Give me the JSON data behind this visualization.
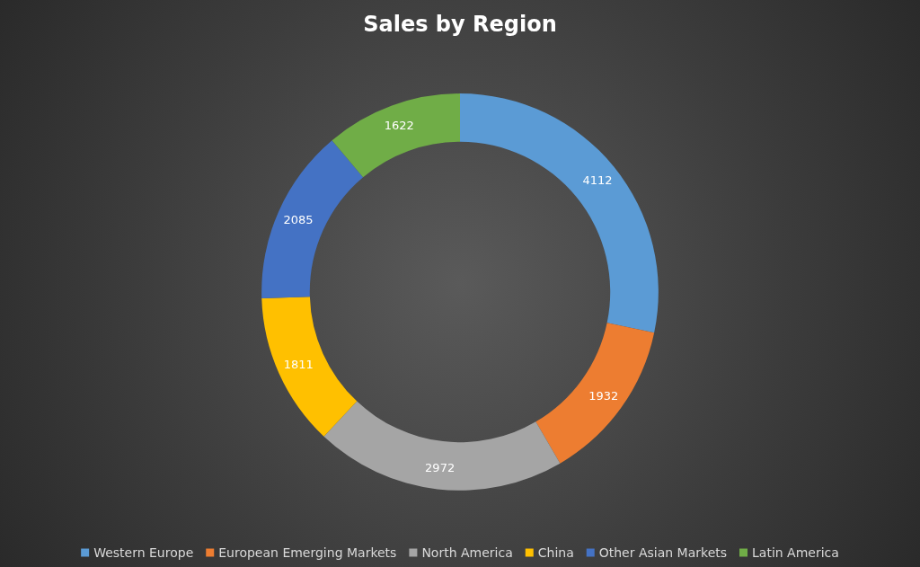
{
  "chart_data": {
    "type": "donut",
    "title": "Sales by Region",
    "categories": [
      "Western Europe",
      "European Emerging Markets",
      "North America",
      "China",
      "Other Asian Markets",
      "Latin America"
    ],
    "values": [
      4112,
      1932,
      2972,
      1811,
      2085,
      1622
    ],
    "colors": [
      "#5b9bd5",
      "#ed7d31",
      "#a5a5a5",
      "#ffc000",
      "#4472c4",
      "#70ad47"
    ],
    "data_labels": true,
    "legend": "bottom"
  }
}
